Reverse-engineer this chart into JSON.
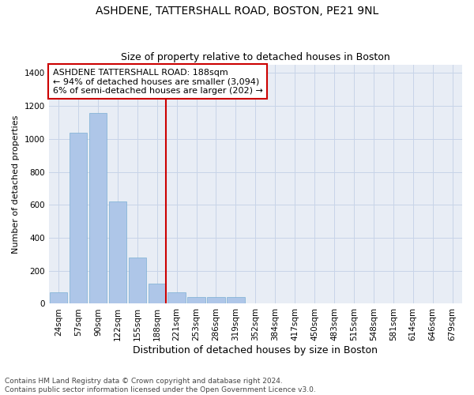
{
  "title1": "ASHDENE, TATTERSHALL ROAD, BOSTON, PE21 9NL",
  "title2": "Size of property relative to detached houses in Boston",
  "xlabel": "Distribution of detached houses by size in Boston",
  "ylabel": "Number of detached properties",
  "categories": [
    "24sqm",
    "57sqm",
    "90sqm",
    "122sqm",
    "155sqm",
    "188sqm",
    "221sqm",
    "253sqm",
    "286sqm",
    "319sqm",
    "352sqm",
    "384sqm",
    "417sqm",
    "450sqm",
    "483sqm",
    "515sqm",
    "548sqm",
    "581sqm",
    "614sqm",
    "646sqm",
    "679sqm"
  ],
  "values": [
    70,
    1040,
    1160,
    620,
    280,
    120,
    70,
    40,
    40,
    40,
    0,
    0,
    0,
    0,
    0,
    0,
    0,
    0,
    0,
    0,
    0
  ],
  "bar_color": "#aec6e8",
  "bar_edge_color": "#7aafd4",
  "highlight_index": 5,
  "highlight_color": "#cc0000",
  "annotation_text": "ASHDENE TATTERSHALL ROAD: 188sqm\n← 94% of detached houses are smaller (3,094)\n6% of semi-detached houses are larger (202) →",
  "annotation_box_color": "#ffffff",
  "annotation_box_edge": "#cc0000",
  "ylim": [
    0,
    1450
  ],
  "yticks": [
    0,
    200,
    400,
    600,
    800,
    1000,
    1200,
    1400
  ],
  "grid_color": "#c8d4e8",
  "bg_color": "#e8edf5",
  "footer": "Contains HM Land Registry data © Crown copyright and database right 2024.\nContains public sector information licensed under the Open Government Licence v3.0.",
  "title1_fontsize": 10,
  "title2_fontsize": 9,
  "xlabel_fontsize": 9,
  "ylabel_fontsize": 8,
  "tick_fontsize": 7.5,
  "annotation_fontsize": 8,
  "footer_fontsize": 6.5
}
